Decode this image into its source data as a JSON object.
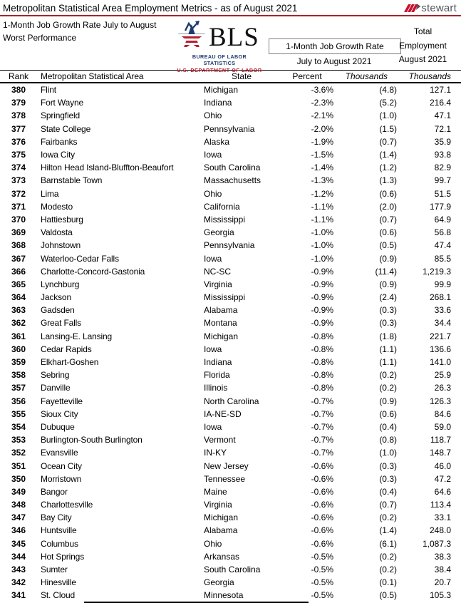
{
  "page": {
    "title": "Metropolitan Statistical Area Employment Metrics - as of August 2021",
    "subtitle_line1": "1-Month Job Growth Rate July to August",
    "subtitle_line2": "Worst Performance",
    "brand_wordmark": "stewart"
  },
  "bls_logo": {
    "acronym": "BLS",
    "line1": "BUREAU OF LABOR STATISTICS",
    "line2": "U.S. DEPARTMENT OF LABOR"
  },
  "header_group": {
    "total_label": "Total",
    "employment_label": "Employment",
    "august_label": "August 2021",
    "growth_box_label": "1-Month Job Growth Rate",
    "growth_period_label": "July to August 2021"
  },
  "columns": {
    "rank": "Rank",
    "msa": "Metropolitan Statistical Area",
    "state": "State",
    "percent": "Percent",
    "thousands": "Thousands",
    "thousands2": "Thousands"
  },
  "colors": {
    "accent_red": "#A6242C",
    "stewart_red": "#C8102E",
    "stewart_gray": "#54565A",
    "bls_navy": "#1F3A6E",
    "bls_red": "#B5202F"
  },
  "table": {
    "rows": [
      [
        "380",
        "Flint",
        "Michigan",
        "-3.6%",
        "(4.8)",
        "127.1"
      ],
      [
        "379",
        "Fort Wayne",
        "Indiana",
        "-2.3%",
        "(5.2)",
        "216.4"
      ],
      [
        "378",
        "Springfield",
        "Ohio",
        "-2.1%",
        "(1.0)",
        "47.1"
      ],
      [
        "377",
        "State College",
        "Pennsylvania",
        "-2.0%",
        "(1.5)",
        "72.1"
      ],
      [
        "376",
        "Fairbanks",
        "Alaska",
        "-1.9%",
        "(0.7)",
        "35.9"
      ],
      [
        "375",
        "Iowa City",
        "Iowa",
        "-1.5%",
        "(1.4)",
        "93.8"
      ],
      [
        "374",
        "Hilton Head Island-Bluffton-Beaufort",
        "South Carolina",
        "-1.4%",
        "(1.2)",
        "82.9"
      ],
      [
        "373",
        "Barnstable Town",
        "Massachusetts",
        "-1.3%",
        "(1.3)",
        "99.7"
      ],
      [
        "372",
        "Lima",
        "Ohio",
        "-1.2%",
        "(0.6)",
        "51.5"
      ],
      [
        "371",
        "Modesto",
        "California",
        "-1.1%",
        "(2.0)",
        "177.9"
      ],
      [
        "370",
        "Hattiesburg",
        "Mississippi",
        "-1.1%",
        "(0.7)",
        "64.9"
      ],
      [
        "369",
        "Valdosta",
        "Georgia",
        "-1.0%",
        "(0.6)",
        "56.8"
      ],
      [
        "368",
        "Johnstown",
        "Pennsylvania",
        "-1.0%",
        "(0.5)",
        "47.4"
      ],
      [
        "367",
        "Waterloo-Cedar Falls",
        "Iowa",
        "-1.0%",
        "(0.9)",
        "85.5"
      ],
      [
        "366",
        "Charlotte-Concord-Gastonia",
        "NC-SC",
        "-0.9%",
        "(11.4)",
        "1,219.3"
      ],
      [
        "365",
        "Lynchburg",
        "Virginia",
        "-0.9%",
        "(0.9)",
        "99.9"
      ],
      [
        "364",
        "Jackson",
        "Mississippi",
        "-0.9%",
        "(2.4)",
        "268.1"
      ],
      [
        "363",
        "Gadsden",
        "Alabama",
        "-0.9%",
        "(0.3)",
        "33.6"
      ],
      [
        "362",
        "Great Falls",
        "Montana",
        "-0.9%",
        "(0.3)",
        "34.4"
      ],
      [
        "361",
        "Lansing-E. Lansing",
        "Michigan",
        "-0.8%",
        "(1.8)",
        "221.7"
      ],
      [
        "360",
        "Cedar Rapids",
        "Iowa",
        "-0.8%",
        "(1.1)",
        "136.6"
      ],
      [
        "359",
        "Elkhart-Goshen",
        "Indiana",
        "-0.8%",
        "(1.1)",
        "141.0"
      ],
      [
        "358",
        "Sebring",
        "Florida",
        "-0.8%",
        "(0.2)",
        "25.9"
      ],
      [
        "357",
        "Danville",
        "Illinois",
        "-0.8%",
        "(0.2)",
        "26.3"
      ],
      [
        "356",
        "Fayetteville",
        "North Carolina",
        "-0.7%",
        "(0.9)",
        "126.3"
      ],
      [
        "355",
        "Sioux City",
        "IA-NE-SD",
        "-0.7%",
        "(0.6)",
        "84.6"
      ],
      [
        "354",
        "Dubuque",
        "Iowa",
        "-0.7%",
        "(0.4)",
        "59.0"
      ],
      [
        "353",
        "Burlington-South Burlington",
        "Vermont",
        "-0.7%",
        "(0.8)",
        "118.7"
      ],
      [
        "352",
        "Evansville",
        "IN-KY",
        "-0.7%",
        "(1.0)",
        "148.7"
      ],
      [
        "351",
        "Ocean City",
        "New Jersey",
        "-0.6%",
        "(0.3)",
        "46.0"
      ],
      [
        "350",
        "Morristown",
        "Tennessee",
        "-0.6%",
        "(0.3)",
        "47.2"
      ],
      [
        "349",
        "Bangor",
        "Maine",
        "-0.6%",
        "(0.4)",
        "64.6"
      ],
      [
        "348",
        "Charlottesville",
        "Virginia",
        "-0.6%",
        "(0.7)",
        "113.4"
      ],
      [
        "347",
        "Bay City",
        "Michigan",
        "-0.6%",
        "(0.2)",
        "33.1"
      ],
      [
        "346",
        "Huntsville",
        "Alabama",
        "-0.6%",
        "(1.4)",
        "248.0"
      ],
      [
        "345",
        "Columbus",
        "Ohio",
        "-0.6%",
        "(6.1)",
        "1,087.3"
      ],
      [
        "344",
        "Hot Springs",
        "Arkansas",
        "-0.5%",
        "(0.2)",
        "38.3"
      ],
      [
        "343",
        "Sumter",
        "South Carolina",
        "-0.5%",
        "(0.2)",
        "38.4"
      ],
      [
        "342",
        "Hinesville",
        "Georgia",
        "-0.5%",
        "(0.1)",
        "20.7"
      ],
      [
        "341",
        "St. Cloud",
        "Minnesota",
        "-0.5%",
        "(0.5)",
        "105.3"
      ]
    ]
  }
}
